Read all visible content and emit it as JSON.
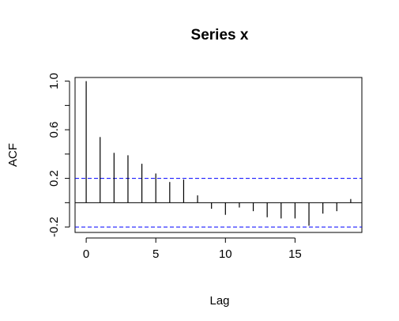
{
  "chart_data": {
    "type": "bar",
    "title": "Series  x",
    "xlabel": "Lag",
    "ylabel": "ACF",
    "xlim": [
      -0.8,
      19.8
    ],
    "ylim": [
      -0.245,
      1.03
    ],
    "x_ticks": [
      0,
      5,
      10,
      15
    ],
    "x_tick_labels": [
      "0",
      "5",
      "10",
      "15"
    ],
    "y_ticks": [
      -0.2,
      0.2,
      0.6,
      1.0
    ],
    "y_tick_labels": [
      "-0.2",
      "0.2",
      "0.6",
      "1.0"
    ],
    "y_minor_ticks": [
      0.0,
      0.4,
      0.8
    ],
    "x": [
      0,
      1,
      2,
      3,
      4,
      5,
      6,
      7,
      8,
      9,
      10,
      11,
      12,
      13,
      14,
      15,
      16,
      17,
      18,
      19
    ],
    "values": [
      1.0,
      0.54,
      0.41,
      0.39,
      0.32,
      0.24,
      0.17,
      0.19,
      0.06,
      -0.05,
      -0.1,
      -0.04,
      -0.07,
      -0.12,
      -0.13,
      -0.13,
      -0.19,
      -0.09,
      -0.07,
      0.03
    ],
    "confidence_bound": 0.2,
    "grid": false,
    "colors": {
      "bars": "#000000",
      "zero_line": "#000000",
      "confidence_lines": "#0000ff",
      "frame": "#000000"
    }
  }
}
